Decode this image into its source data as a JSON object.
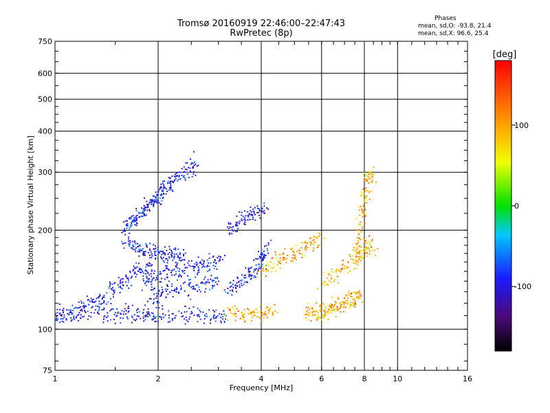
{
  "chart_data": {
    "type": "scatter",
    "title": "Tromsø 20160919 22:46:00–22:47:43",
    "subtitle": "RwPretec (8p)",
    "xlabel": "Frequency [MHz]",
    "ylabel": "Stationary phase Virtual Height [km]",
    "xscale": "log2",
    "yscale": "log",
    "xlim": [
      1,
      16
    ],
    "ylim": [
      75,
      750
    ],
    "x_ticks": [
      "1",
      "2",
      "4",
      "6",
      "8",
      "10",
      "16"
    ],
    "y_ticks": [
      "75",
      "100",
      "200",
      "300",
      "400",
      "500",
      "600",
      "750"
    ],
    "grid": true,
    "phases": {
      "heading": "Phases",
      "o_line": "mean, sd,O:  -93.8,  21.4",
      "x_line": "mean, sd,X:   96.6,  25.4"
    },
    "colorbar": {
      "label": "[deg]",
      "range": [
        -180,
        180
      ],
      "ticks": [
        "100",
        "0",
        "-100"
      ]
    },
    "series": [
      {
        "mode": "O",
        "phase_mean_deg": -93.8,
        "phase_sd_deg": 21.4,
        "traces": [
          {
            "x": [
              1.0,
              1.2,
              1.4,
              1.6,
              1.8,
              2.0,
              2.4,
              2.8,
              3.2
            ],
            "y": [
              110,
              114,
              113,
              112,
              111,
              110,
              110,
              109,
              109
            ]
          },
          {
            "x": [
              1.0,
              1.15,
              1.3,
              1.45,
              1.6,
              1.75,
              1.9
            ],
            "y": [
              106,
              112,
              120,
              130,
              140,
              150,
              158
            ]
          },
          {
            "x": [
              1.6,
              1.7,
              1.8,
              1.9,
              2.0,
              2.1,
              2.2,
              2.4,
              2.6
            ],
            "y": [
              205,
              215,
              225,
              240,
              255,
              270,
              285,
              300,
              320
            ]
          },
          {
            "x": [
              1.6,
              1.75,
              1.9,
              2.05,
              2.2,
              2.4
            ],
            "y": [
              185,
              178,
              172,
              170,
              168,
              166
            ]
          },
          {
            "x": [
              1.8,
              2.0,
              2.2,
              2.5,
              2.8,
              3.1
            ],
            "y": [
              140,
              145,
              150,
              155,
              160,
              162
            ]
          },
          {
            "x": [
              1.9,
              2.1,
              2.4,
              2.7,
              3.0
            ],
            "y": [
              125,
              130,
              135,
              138,
              140
            ]
          },
          {
            "x": [
              3.2,
              3.5,
              3.8,
              4.0,
              4.2
            ],
            "y": [
              130,
              140,
              150,
              165,
              180
            ]
          },
          {
            "x": [
              3.2,
              3.5,
              3.8,
              4.1
            ],
            "y": [
              200,
              215,
              225,
              235
            ]
          }
        ]
      },
      {
        "mode": "X",
        "phase_mean_deg": 96.6,
        "phase_sd_deg": 25.4,
        "traces": [
          {
            "x": [
              3.2,
              3.6,
              4.0,
              4.4
            ],
            "y": [
              112,
              111,
              112,
              115
            ]
          },
          {
            "x": [
              5.4,
              5.8,
              6.2,
              6.6,
              7.0,
              7.4,
              7.8
            ],
            "y": [
              112,
              113,
              115,
              117,
              120,
              124,
              128
            ]
          },
          {
            "x": [
              4.0,
              4.5,
              5.0,
              5.5,
              6.0
            ],
            "y": [
              150,
              160,
              170,
              180,
              190
            ]
          },
          {
            "x": [
              7.6,
              7.8,
              8.0,
              8.2,
              8.4
            ],
            "y": [
              160,
              200,
              240,
              280,
              300
            ]
          },
          {
            "x": [
              6.0,
              6.8,
              7.5,
              8.0,
              8.5
            ],
            "y": [
              140,
              150,
              165,
              175,
              180
            ]
          }
        ]
      }
    ]
  }
}
